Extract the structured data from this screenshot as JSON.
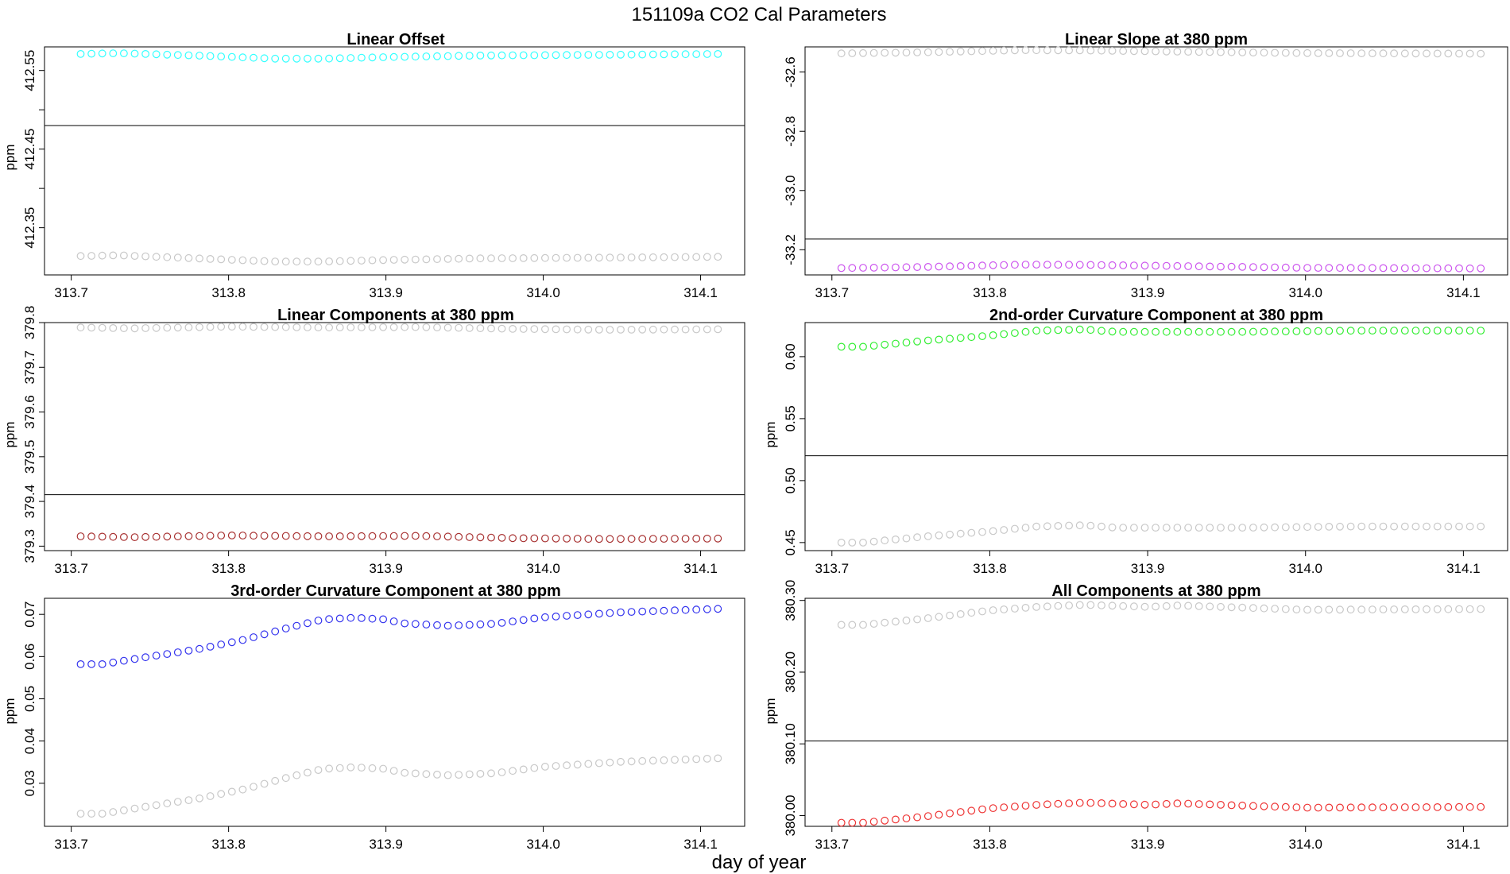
{
  "figure": {
    "title": "151109a   CO2 Cal Parameters",
    "xlabel": "day of year"
  },
  "chart_data": [
    {
      "type": "scatter",
      "title": "Linear Offset",
      "ylabel": "ppm",
      "xlim": [
        313.683,
        314.128
      ],
      "ylim": [
        412.29,
        412.58
      ],
      "x_ticks": [
        "313.7",
        "313.8",
        "313.9",
        "314.0",
        "314.1"
      ],
      "y_ticks": [
        "412.35",
        "412.45",
        "412.55"
      ],
      "y_minor_ticks": [
        412.4,
        412.5
      ],
      "reference_line": 412.48,
      "x_range": [
        313.706,
        314.111
      ],
      "n_points": 60,
      "series": [
        {
          "color": "#33ffff",
          "anchors": [
            [
              313.706,
              412.571
            ],
            [
              313.73,
              412.572
            ],
            [
              313.78,
              412.569
            ],
            [
              313.83,
              412.565
            ],
            [
              313.86,
              412.565
            ],
            [
              313.9,
              412.567
            ],
            [
              313.96,
              412.569
            ],
            [
              314.04,
              412.57
            ],
            [
              314.111,
              412.571
            ]
          ]
        },
        {
          "color": "#c8c8c8",
          "anchors": [
            [
              313.706,
              412.314
            ],
            [
              313.73,
              412.315
            ],
            [
              313.78,
              412.311
            ],
            [
              313.83,
              412.307
            ],
            [
              313.86,
              412.307
            ],
            [
              313.9,
              412.309
            ],
            [
              313.96,
              412.311
            ],
            [
              314.04,
              412.312
            ],
            [
              314.111,
              412.313
            ]
          ]
        }
      ]
    },
    {
      "type": "scatter",
      "title": "Linear Slope at 380 ppm",
      "ylabel": "",
      "xlim": [
        313.683,
        314.128
      ],
      "ylim": [
        -33.285,
        -32.515
      ],
      "x_ticks": [
        "313.7",
        "313.8",
        "313.9",
        "314.0",
        "314.1"
      ],
      "y_ticks": [
        "-32.6",
        "-32.8",
        "-33.0",
        "-33.2"
      ],
      "y_minor_ticks": [],
      "reference_line": -33.164,
      "x_range": [
        313.706,
        314.111
      ],
      "n_points": 60,
      "series": [
        {
          "color": "#c8c8c8",
          "anchors": [
            [
              313.706,
              -32.537
            ],
            [
              313.76,
              -32.533
            ],
            [
              313.82,
              -32.526
            ],
            [
              313.86,
              -32.527
            ],
            [
              313.92,
              -32.531
            ],
            [
              314.0,
              -32.536
            ],
            [
              314.111,
              -32.538
            ]
          ]
        },
        {
          "color": "#cc55ee",
          "anchors": [
            [
              313.706,
              -33.262
            ],
            [
              313.76,
              -33.258
            ],
            [
              313.82,
              -33.25
            ],
            [
              313.86,
              -33.251
            ],
            [
              313.92,
              -33.255
            ],
            [
              314.0,
              -33.261
            ],
            [
              314.111,
              -33.263
            ]
          ]
        }
      ]
    },
    {
      "type": "scatter",
      "title": "Linear Components at 380 ppm",
      "ylabel": "ppm",
      "xlim": [
        313.683,
        314.128
      ],
      "ylim": [
        379.29,
        379.8
      ],
      "x_ticks": [
        "313.7",
        "313.8",
        "313.9",
        "314.0",
        "314.1"
      ],
      "y_ticks": [
        "379.3",
        "379.4",
        "379.5",
        "379.6",
        "379.7",
        "379.8"
      ],
      "y_minor_ticks": [],
      "reference_line": 379.415,
      "x_range": [
        313.706,
        314.111
      ],
      "n_points": 60,
      "series": [
        {
          "color": "#c8c8c8",
          "anchors": [
            [
              313.706,
              379.789
            ],
            [
              313.74,
              379.787
            ],
            [
              313.8,
              379.791
            ],
            [
              313.86,
              379.789
            ],
            [
              313.92,
              379.79
            ],
            [
              313.98,
              379.786
            ],
            [
              314.04,
              379.784
            ],
            [
              314.111,
              379.785
            ]
          ]
        },
        {
          "color": "#a83232",
          "anchors": [
            [
              313.706,
              379.322
            ],
            [
              313.74,
              379.32
            ],
            [
              313.8,
              379.324
            ],
            [
              313.86,
              379.322
            ],
            [
              313.92,
              379.323
            ],
            [
              313.98,
              379.318
            ],
            [
              314.04,
              379.316
            ],
            [
              314.111,
              379.317
            ]
          ]
        }
      ]
    },
    {
      "type": "scatter",
      "title": "2nd-order Curvature Component at 380 ppm",
      "ylabel": "ppm",
      "xlim": [
        313.683,
        314.128
      ],
      "ylim": [
        0.4435,
        0.6275
      ],
      "x_ticks": [
        "313.7",
        "313.8",
        "313.9",
        "314.0",
        "314.1"
      ],
      "y_ticks": [
        "0.45",
        "0.50",
        "0.55",
        "0.60"
      ],
      "y_minor_ticks": [],
      "reference_line": 0.52,
      "x_range": [
        313.706,
        314.111
      ],
      "n_points": 60,
      "series": [
        {
          "color": "#33ee33",
          "anchors": [
            [
              313.706,
              0.608
            ],
            [
              313.72,
              0.608
            ],
            [
              313.76,
              0.613
            ],
            [
              313.8,
              0.617
            ],
            [
              313.83,
              0.621
            ],
            [
              313.86,
              0.622
            ],
            [
              313.88,
              0.62
            ],
            [
              313.96,
              0.62
            ],
            [
              314.03,
              0.621
            ],
            [
              314.111,
              0.621
            ]
          ]
        },
        {
          "color": "#c8c8c8",
          "anchors": [
            [
              313.706,
              0.45
            ],
            [
              313.72,
              0.45
            ],
            [
              313.76,
              0.455
            ],
            [
              313.8,
              0.459
            ],
            [
              313.83,
              0.463
            ],
            [
              313.86,
              0.464
            ],
            [
              313.88,
              0.462
            ],
            [
              313.96,
              0.462
            ],
            [
              314.03,
              0.463
            ],
            [
              314.111,
              0.463
            ]
          ]
        }
      ]
    },
    {
      "type": "scatter",
      "title": "3rd-order Curvature Component at 380 ppm",
      "ylabel": "ppm",
      "xlim": [
        313.683,
        314.128
      ],
      "ylim": [
        0.0198,
        0.0738
      ],
      "x_ticks": [
        "313.7",
        "313.8",
        "313.9",
        "314.0",
        "314.1"
      ],
      "y_ticks": [
        "0.03",
        "0.04",
        "0.05",
        "0.06",
        "0.07"
      ],
      "y_minor_ticks": [],
      "reference_line": null,
      "x_range": [
        313.706,
        314.111
      ],
      "n_points": 60,
      "series": [
        {
          "color": "#3333ee",
          "anchors": [
            [
              313.706,
              0.0582
            ],
            [
              313.72,
              0.0582
            ],
            [
              313.75,
              0.06
            ],
            [
              313.78,
              0.0617
            ],
            [
              313.81,
              0.064
            ],
            [
              313.84,
              0.067
            ],
            [
              313.86,
              0.0688
            ],
            [
              313.88,
              0.0692
            ],
            [
              313.9,
              0.0688
            ],
            [
              313.91,
              0.0679
            ],
            [
              313.94,
              0.0673
            ],
            [
              313.97,
              0.0678
            ],
            [
              314.0,
              0.0693
            ],
            [
              314.05,
              0.0705
            ],
            [
              314.111,
              0.0713
            ]
          ]
        },
        {
          "color": "#c8c8c8",
          "anchors": [
            [
              313.706,
              0.0228
            ],
            [
              313.72,
              0.0228
            ],
            [
              313.75,
              0.0246
            ],
            [
              313.78,
              0.0263
            ],
            [
              313.81,
              0.0286
            ],
            [
              313.84,
              0.0316
            ],
            [
              313.86,
              0.0334
            ],
            [
              313.88,
              0.0338
            ],
            [
              313.9,
              0.0334
            ],
            [
              313.91,
              0.0325
            ],
            [
              313.94,
              0.0319
            ],
            [
              313.97,
              0.0324
            ],
            [
              314.0,
              0.0339
            ],
            [
              314.05,
              0.0351
            ],
            [
              314.111,
              0.0359
            ]
          ]
        }
      ]
    },
    {
      "type": "scatter",
      "title": "All Components at 380 ppm",
      "ylabel": "ppm",
      "xlim": [
        313.683,
        314.128
      ],
      "ylim": [
        379.985,
        380.303
      ],
      "x_ticks": [
        "313.7",
        "313.8",
        "313.9",
        "314.0",
        "314.1"
      ],
      "y_ticks": [
        "380.00",
        "380.10",
        "380.20",
        "380.30"
      ],
      "y_minor_ticks": [],
      "reference_line": 380.104,
      "x_range": [
        313.706,
        314.111
      ],
      "n_points": 60,
      "series": [
        {
          "color": "#c8c8c8",
          "anchors": [
            [
              313.706,
              380.266
            ],
            [
              313.72,
              380.266
            ],
            [
              313.76,
              380.275
            ],
            [
              313.8,
              380.286
            ],
            [
              313.83,
              380.291
            ],
            [
              313.86,
              380.294
            ],
            [
              313.9,
              380.291
            ],
            [
              313.92,
              380.293
            ],
            [
              313.96,
              380.29
            ],
            [
              314.0,
              380.287
            ],
            [
              314.111,
              380.288
            ]
          ]
        },
        {
          "color": "#ee3333",
          "anchors": [
            [
              313.706,
              379.99
            ],
            [
              313.72,
              379.99
            ],
            [
              313.76,
              379.999
            ],
            [
              313.8,
              380.01
            ],
            [
              313.83,
              380.015
            ],
            [
              313.86,
              380.018
            ],
            [
              313.9,
              380.015
            ],
            [
              313.92,
              380.017
            ],
            [
              313.96,
              380.014
            ],
            [
              314.0,
              380.011
            ],
            [
              314.111,
              380.012
            ]
          ]
        }
      ]
    }
  ]
}
